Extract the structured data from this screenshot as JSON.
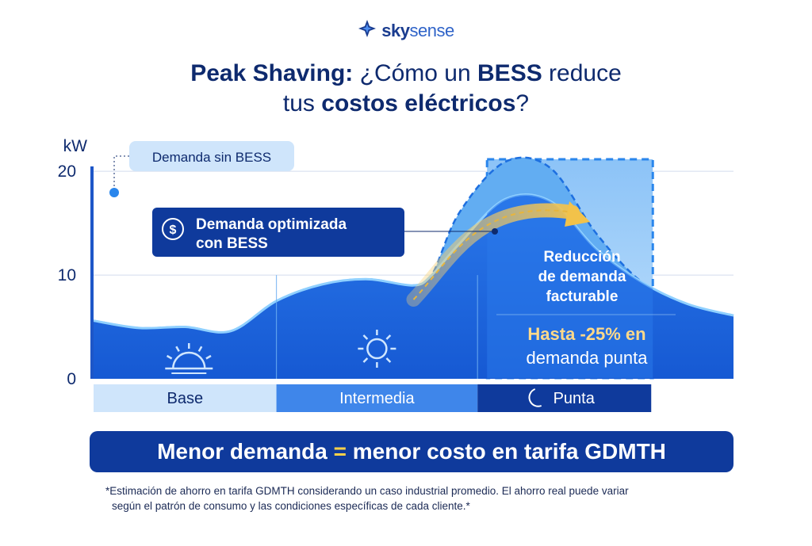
{
  "brand": {
    "prefix": "sky",
    "suffix": "sense"
  },
  "title": {
    "line1_bold": "Peak Shaving:",
    "line1_mid": " ¿Cómo un ",
    "line1_bold2": "BESS",
    "line1_end": " reduce",
    "line2_start": "tus ",
    "line2_bold": "costos eléctricos",
    "line2_end": "?"
  },
  "chart_data": {
    "type": "area",
    "ylabel": "kW",
    "ylim": [
      0,
      22
    ],
    "y_ticks": [
      {
        "value": 0,
        "label": "0"
      },
      {
        "value": 10,
        "label": "10"
      },
      {
        "value": 20,
        "label": "20"
      }
    ],
    "series": [
      {
        "name": "Demanda sin BESS",
        "x": [
          0,
          0.5,
          1.0,
          1.5,
          2.0,
          2.5,
          3.0,
          3.5,
          3.7,
          4.0,
          4.5,
          5.0,
          5.5,
          6.0,
          6.5,
          7.0
        ],
        "values": [
          5.6,
          4.9,
          5.0,
          4.6,
          7.5,
          9.1,
          9.6,
          9.0,
          10.0,
          16.0,
          20.9,
          20.3,
          14.0,
          9.3,
          7.2,
          6.1
        ]
      },
      {
        "name": "Demanda optimizada con BESS",
        "x": [
          0,
          0.5,
          1.0,
          1.5,
          2.0,
          2.5,
          3.0,
          3.5,
          3.7,
          4.0,
          4.5,
          5.0,
          5.5,
          6.0,
          6.5,
          7.0
        ],
        "values": [
          5.6,
          4.9,
          5.0,
          4.6,
          7.5,
          9.1,
          9.6,
          9.0,
          10.0,
          13.0,
          17.3,
          17.1,
          12.5,
          9.3,
          7.2,
          6.1
        ]
      }
    ],
    "periods": [
      {
        "label": "Base",
        "from": 0,
        "to": 2.0,
        "icon": "sunrise-icon"
      },
      {
        "label": "Intermedia",
        "from": 2.0,
        "to": 4.2,
        "icon": "sun-icon"
      },
      {
        "label": "Punta",
        "from": 4.2,
        "to": 6.1,
        "icon": "moon-icon"
      }
    ],
    "annotations": {
      "sin_bess": "Demanda sin BESS",
      "optimizada_1": "Demanda optimizada",
      "optimizada_2": "con BESS",
      "reduccion_1": "Reducción",
      "reduccion_2": "de demanda",
      "reduccion_3": "facturable",
      "hasta": "Hasta -25% en",
      "demanda_punta": "demanda punta"
    },
    "colors": {
      "area": "#1f66dd",
      "area_light": "#5ea7f0",
      "peak_zone": "#bcdcfb",
      "base_bar": "#cfe5fb",
      "mid_bar": "#3f86ea",
      "peak_bar": "#0f3a9c",
      "accent": "#f2c24a",
      "accent_text": "#ffd98a"
    }
  },
  "banner": {
    "left": "Menor demanda ",
    "eq": "=",
    "right": " menor costo en tarifa GDMTH"
  },
  "footnote": {
    "line1": "*Estimación de ahorro en tarifa GDMTH considerando un caso industrial promedio. El ahorro real puede variar",
    "line2": "según el patrón de consumo y las condiciones específicas de cada cliente.*"
  }
}
